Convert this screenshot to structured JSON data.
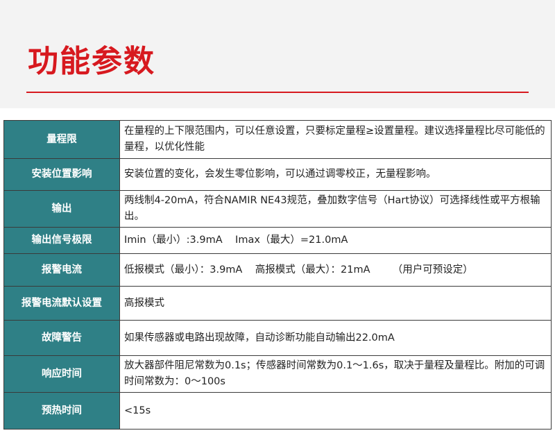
{
  "header": {
    "title": "功能参数"
  },
  "table": {
    "rows": [
      [
        "量程限",
        "在量程的上下限范围内，可以任意设置，只要标定量程≥设置量程。建议选择量程比尽可能低的量程，以优化性能"
      ],
      [
        "安装位置影响",
        "安装位置的变化，会发生零位影响，可以通过调零校正，无量程影响。"
      ],
      [
        "输出",
        "两线制4-20mA，符合NAMIR NE43规范，叠加数字信号（Hart协议）可选择线性或平方根输出。"
      ],
      [
        "输出信号极限",
        "Imin（最小）:3.9mA    Imax（最大）=21.0mA"
      ],
      [
        "报警电流",
        "低报模式（最小）：3.9mA    高报模式（最大）：21mA       （用户可预设定）"
      ],
      [
        "报警电流默认设置",
        "高报模式"
      ],
      [
        "故障警告",
        "如果传感器或电路出现故障，自动诊断功能自动输出22.0mA"
      ],
      [
        "响应时间",
        "放大器部件阻尼常数为0.1s；传感器时间常数为0.1～1.6s，取决于量程及量程比。附加的可调时间常数为：0～100s"
      ],
      [
        "预热时间",
        "<15s"
      ]
    ]
  }
}
